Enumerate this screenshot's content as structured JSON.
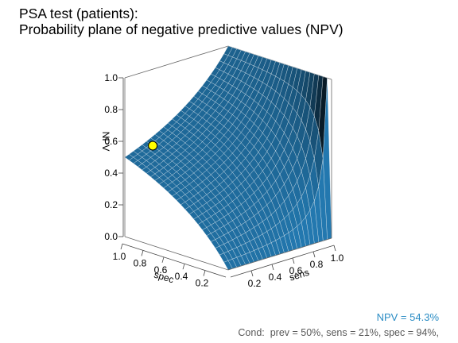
{
  "title_line1": "PSA test (patients):",
  "title_line2": "Probability plane of negative predictive values (NPV)",
  "colors": {
    "surface": "#1f6b9c",
    "grid": "#e8eef3",
    "point_fill": "#ffff00",
    "point_stroke": "#000000",
    "npv_text": "#2a8cc4"
  },
  "chart_data": {
    "type": "surface",
    "xlabel": "sens",
    "ylabel": "spec",
    "zlabel": "NPV",
    "xlim": [
      0,
      1
    ],
    "ylim": [
      0,
      1
    ],
    "zlim": [
      0,
      1
    ],
    "x_ticks": [
      "0.2",
      "0.4",
      "0.6",
      "0.8",
      "1.0"
    ],
    "y_ticks": [
      "1.0",
      "0.8",
      "0.6",
      "0.4",
      "0.2"
    ],
    "z_ticks": [
      "0.0",
      "0.2",
      "0.4",
      "0.6",
      "0.8",
      "1.0"
    ],
    "prevalence": 0.5,
    "point": {
      "sens": 0.21,
      "spec": 0.94,
      "npv": 0.543
    }
  },
  "footer": {
    "npv_label": "NPV = 54.3%",
    "cond_label": "Cond:  prev = 50%, sens = 21%, spec = 94%,"
  }
}
